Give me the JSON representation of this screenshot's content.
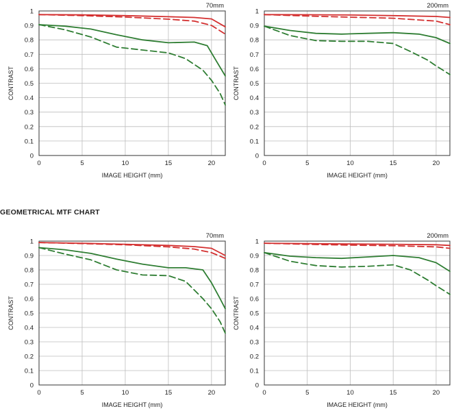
{
  "section_title": "GEOMETRICAL  MTF CHART",
  "chart_data": [
    {
      "type": "line",
      "title": "70mm",
      "xlabel": "IMAGE HEIGHT (mm)",
      "ylabel": "CONTRAST",
      "xlim": [
        0,
        21.6
      ],
      "ylim": [
        0,
        1
      ],
      "xticks": [
        0,
        5,
        10,
        15,
        20
      ],
      "yticks": [
        "0",
        "0.1",
        "0.2",
        "0.3",
        "0.4",
        "0.5",
        "0.6",
        "0.7",
        "0.8",
        "0.9",
        "1"
      ],
      "grid": true,
      "series": [
        {
          "color": "#d32f2f",
          "style": "solid",
          "x": [
            0,
            5,
            10,
            15,
            18,
            20,
            21.6
          ],
          "y": [
            0.975,
            0.973,
            0.968,
            0.96,
            0.955,
            0.945,
            0.89
          ]
        },
        {
          "color": "#d32f2f",
          "style": "dashed",
          "x": [
            0,
            5,
            10,
            15,
            18,
            20,
            21.6
          ],
          "y": [
            0.975,
            0.968,
            0.958,
            0.943,
            0.93,
            0.9,
            0.84
          ]
        },
        {
          "color": "#2e7d32",
          "style": "solid",
          "x": [
            0,
            3,
            6,
            9,
            12,
            15,
            18,
            19.5,
            20.5,
            21.6
          ],
          "y": [
            0.905,
            0.895,
            0.875,
            0.835,
            0.8,
            0.78,
            0.785,
            0.76,
            0.66,
            0.55
          ]
        },
        {
          "color": "#2e7d32",
          "style": "dashed",
          "x": [
            0,
            3,
            6,
            9,
            12,
            15,
            17,
            19,
            20,
            21,
            21.6
          ],
          "y": [
            0.905,
            0.87,
            0.82,
            0.75,
            0.73,
            0.71,
            0.67,
            0.59,
            0.52,
            0.43,
            0.35
          ]
        }
      ]
    },
    {
      "type": "line",
      "title": "200mm",
      "xlabel": "IMAGE HEIGHT (mm)",
      "ylabel": "CONTRAST",
      "xlim": [
        0,
        21.6
      ],
      "ylim": [
        0,
        1
      ],
      "xticks": [
        0,
        5,
        10,
        15,
        20
      ],
      "yticks": [
        "0",
        "0.1",
        "0.2",
        "0.3",
        "0.4",
        "0.5",
        "0.6",
        "0.7",
        "0.8",
        "0.9",
        "1"
      ],
      "grid": true,
      "series": [
        {
          "color": "#d32f2f",
          "style": "solid",
          "x": [
            0,
            5,
            10,
            15,
            20,
            21.6
          ],
          "y": [
            0.975,
            0.974,
            0.972,
            0.968,
            0.962,
            0.955
          ]
        },
        {
          "color": "#d32f2f",
          "style": "dashed",
          "x": [
            0,
            5,
            10,
            15,
            20,
            21.6
          ],
          "y": [
            0.975,
            0.965,
            0.957,
            0.95,
            0.93,
            0.905
          ]
        },
        {
          "color": "#2e7d32",
          "style": "solid",
          "x": [
            0,
            3,
            6,
            9,
            12,
            15,
            18,
            20,
            21.6
          ],
          "y": [
            0.895,
            0.865,
            0.845,
            0.84,
            0.845,
            0.85,
            0.84,
            0.815,
            0.775
          ]
        },
        {
          "color": "#2e7d32",
          "style": "dashed",
          "x": [
            0,
            3,
            6,
            9,
            12,
            15,
            17,
            19,
            20,
            21.6
          ],
          "y": [
            0.895,
            0.83,
            0.795,
            0.79,
            0.79,
            0.775,
            0.72,
            0.66,
            0.62,
            0.56
          ]
        }
      ]
    },
    {
      "type": "line",
      "title": "70mm",
      "xlabel": "IMAGE HEIGHT (mm)",
      "ylabel": "CONTRAST",
      "xlim": [
        0,
        21.6
      ],
      "ylim": [
        0,
        1
      ],
      "xticks": [
        0,
        5,
        10,
        15,
        20
      ],
      "yticks": [
        "0",
        "0.1",
        "0.2",
        "0.3",
        "0.4",
        "0.5",
        "0.6",
        "0.7",
        "0.8",
        "0.9",
        "1"
      ],
      "grid": true,
      "series": [
        {
          "color": "#d32f2f",
          "style": "solid",
          "x": [
            0,
            5,
            10,
            15,
            18,
            20,
            21.6
          ],
          "y": [
            0.99,
            0.985,
            0.978,
            0.97,
            0.962,
            0.95,
            0.9
          ]
        },
        {
          "color": "#d32f2f",
          "style": "dashed",
          "x": [
            0,
            5,
            10,
            15,
            18,
            20,
            21.6
          ],
          "y": [
            0.99,
            0.983,
            0.975,
            0.96,
            0.945,
            0.92,
            0.88
          ]
        },
        {
          "color": "#2e7d32",
          "style": "solid",
          "x": [
            0,
            3,
            6,
            9,
            12,
            15,
            17,
            19,
            20,
            21,
            21.6
          ],
          "y": [
            0.955,
            0.94,
            0.915,
            0.875,
            0.84,
            0.815,
            0.815,
            0.8,
            0.71,
            0.6,
            0.53
          ]
        },
        {
          "color": "#2e7d32",
          "style": "dashed",
          "x": [
            0,
            3,
            6,
            9,
            12,
            15,
            17,
            19,
            20,
            21,
            21.6
          ],
          "y": [
            0.955,
            0.91,
            0.87,
            0.8,
            0.765,
            0.76,
            0.72,
            0.6,
            0.53,
            0.44,
            0.36
          ]
        }
      ]
    },
    {
      "type": "line",
      "title": "200mm",
      "xlabel": "IMAGE HEIGHT (mm)",
      "ylabel": "CONTRAST",
      "xlim": [
        0,
        21.6
      ],
      "ylim": [
        0,
        1
      ],
      "xticks": [
        0,
        5,
        10,
        15,
        20
      ],
      "yticks": [
        "0",
        "0.1",
        "0.2",
        "0.3",
        "0.4",
        "0.5",
        "0.6",
        "0.7",
        "0.8",
        "0.9",
        "1"
      ],
      "grid": true,
      "series": [
        {
          "color": "#d32f2f",
          "style": "solid",
          "x": [
            0,
            5,
            10,
            15,
            20,
            21.6
          ],
          "y": [
            0.985,
            0.983,
            0.98,
            0.978,
            0.975,
            0.97
          ]
        },
        {
          "color": "#d32f2f",
          "style": "dashed",
          "x": [
            0,
            5,
            10,
            15,
            20,
            21.6
          ],
          "y": [
            0.985,
            0.978,
            0.972,
            0.968,
            0.96,
            0.95
          ]
        },
        {
          "color": "#2e7d32",
          "style": "solid",
          "x": [
            0,
            3,
            6,
            9,
            12,
            15,
            18,
            20,
            21.6
          ],
          "y": [
            0.92,
            0.895,
            0.885,
            0.88,
            0.89,
            0.9,
            0.885,
            0.85,
            0.79
          ]
        },
        {
          "color": "#2e7d32",
          "style": "dashed",
          "x": [
            0,
            3,
            6,
            9,
            12,
            15,
            17,
            19,
            20,
            21.6
          ],
          "y": [
            0.92,
            0.86,
            0.83,
            0.82,
            0.825,
            0.835,
            0.8,
            0.73,
            0.69,
            0.63
          ]
        }
      ]
    }
  ]
}
